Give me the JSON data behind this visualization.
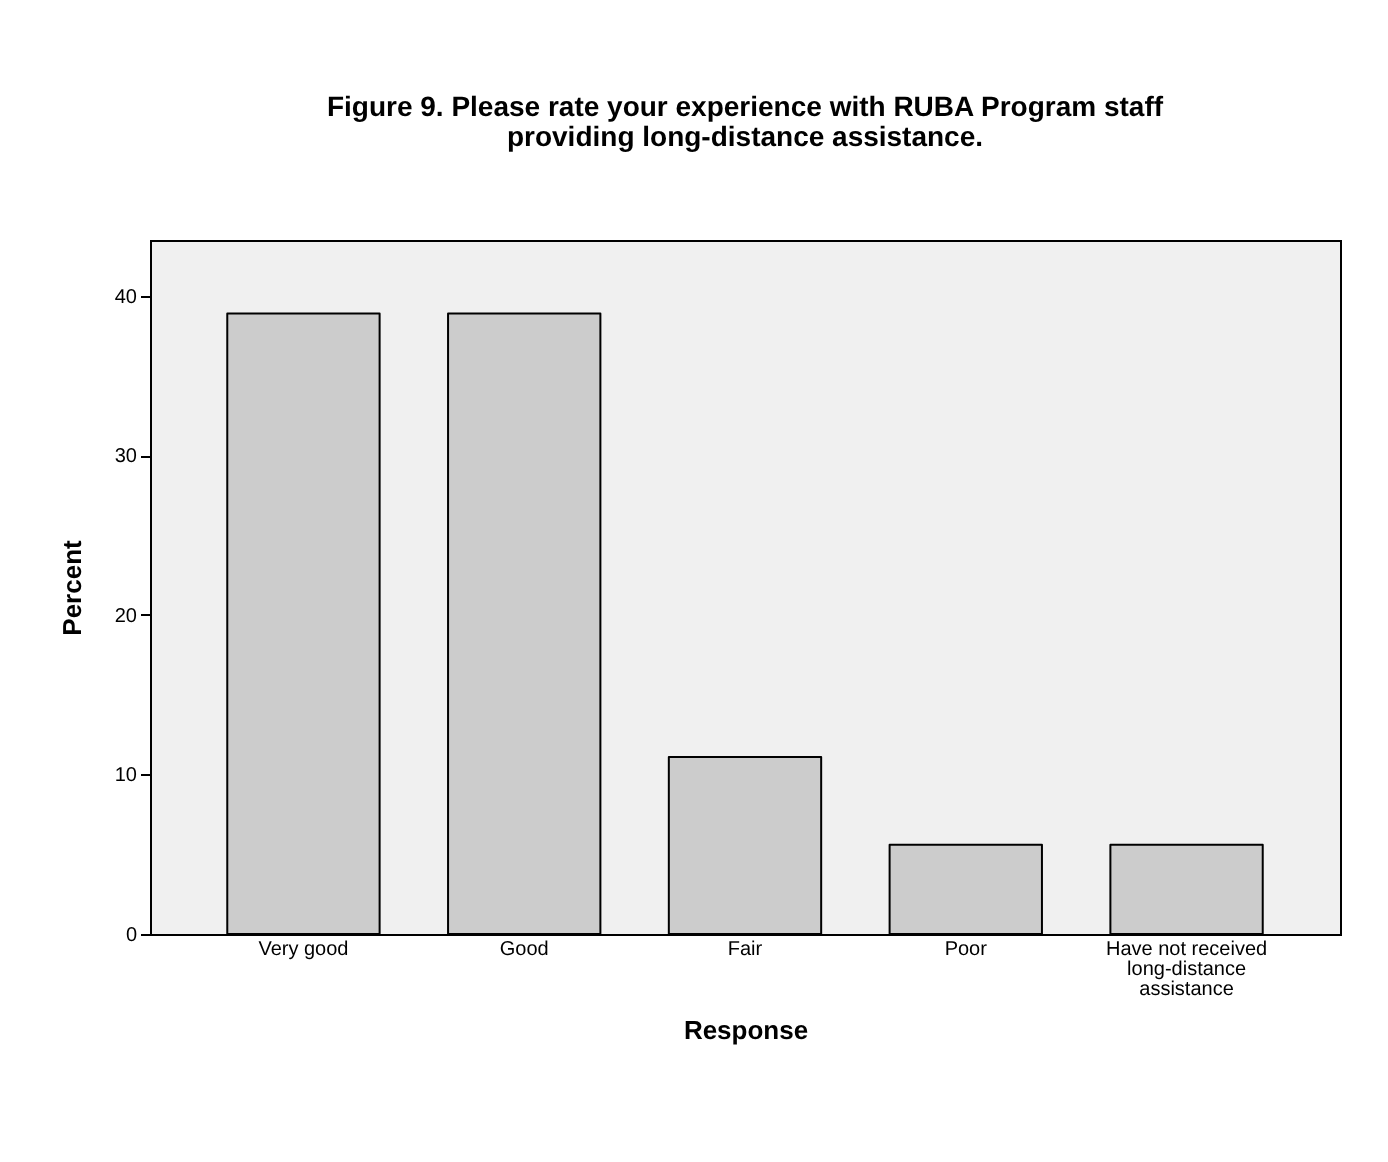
{
  "chart_data": {
    "type": "bar",
    "title": "Figure 9.  Please rate your experience with RUBA Program staff providing long-distance assistance.",
    "xlabel": "Response",
    "ylabel": "Percent",
    "categories": [
      "Very good",
      "Good",
      "Fair",
      "Poor",
      "Have not received long-distance assistance"
    ],
    "values": [
      38.9,
      38.9,
      11.1,
      5.6,
      5.6
    ],
    "color": "#cccccc",
    "ylim": [
      0,
      43.5
    ],
    "yticks": [
      0,
      10,
      20,
      30,
      40
    ],
    "grid": false
  }
}
